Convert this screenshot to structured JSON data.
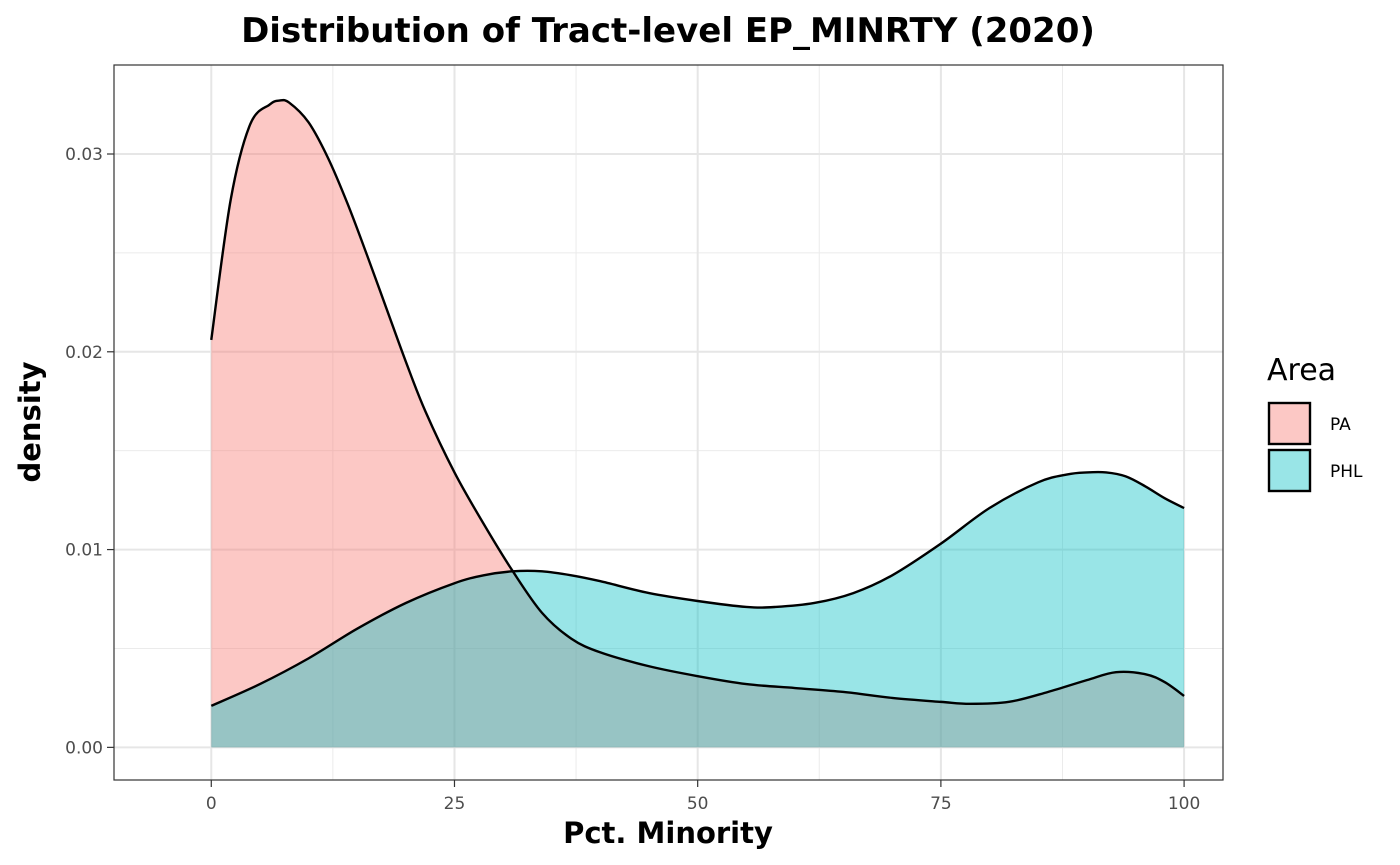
{
  "chart_data": {
    "type": "area",
    "title": "Distribution of Tract-level EP_MINRTY (2020)",
    "xlabel": "Pct. Minority",
    "ylabel": "density",
    "xlim": [
      -10,
      104
    ],
    "ylim": [
      -0.00165,
      0.0345
    ],
    "x_ticks": [
      0,
      25,
      50,
      75,
      100
    ],
    "x_tick_labels": [
      "0",
      "25",
      "50",
      "75",
      "100"
    ],
    "y_ticks": [
      0.0,
      0.01,
      0.02,
      0.03
    ],
    "y_tick_labels": [
      "0.00",
      "0.01",
      "0.02",
      "0.03"
    ],
    "grid": true,
    "legend": {
      "title": "Area",
      "position": "right"
    },
    "series": [
      {
        "name": "PA",
        "color": "#F8766D",
        "fill_opacity": 0.4,
        "x": [
          0,
          2,
          4,
          6,
          7,
          8,
          10,
          12,
          14,
          16,
          18,
          20,
          22,
          25,
          28,
          31,
          34,
          37,
          40,
          45,
          50,
          55,
          60,
          65,
          70,
          75,
          78,
          82,
          86,
          90,
          93,
          96,
          98,
          100
        ],
        "values": [
          0.0206,
          0.0277,
          0.0315,
          0.0325,
          0.0327,
          0.0326,
          0.0316,
          0.0298,
          0.0275,
          0.0249,
          0.0222,
          0.0195,
          0.017,
          0.0139,
          0.0113,
          0.0089,
          0.0068,
          0.0055,
          0.0048,
          0.0041,
          0.0036,
          0.0032,
          0.003,
          0.0028,
          0.0025,
          0.0023,
          0.0022,
          0.0023,
          0.0028,
          0.0034,
          0.0038,
          0.0037,
          0.0033,
          0.0026
        ]
      },
      {
        "name": "PHL",
        "color": "#00BFC4",
        "fill_opacity": 0.4,
        "x": [
          0,
          5,
          10,
          15,
          20,
          25,
          28,
          31,
          34,
          37,
          40,
          45,
          50,
          55,
          58,
          62,
          66,
          70,
          75,
          80,
          85,
          88,
          90,
          92,
          94,
          96,
          98,
          100
        ],
        "values": [
          0.0021,
          0.0032,
          0.0045,
          0.006,
          0.0073,
          0.0083,
          0.0087,
          0.0089,
          0.0089,
          0.0087,
          0.0084,
          0.0078,
          0.0074,
          0.0071,
          0.0071,
          0.0073,
          0.0078,
          0.0087,
          0.0103,
          0.0121,
          0.0134,
          0.0138,
          0.0139,
          0.0139,
          0.0137,
          0.0132,
          0.0126,
          0.0121
        ]
      }
    ]
  }
}
